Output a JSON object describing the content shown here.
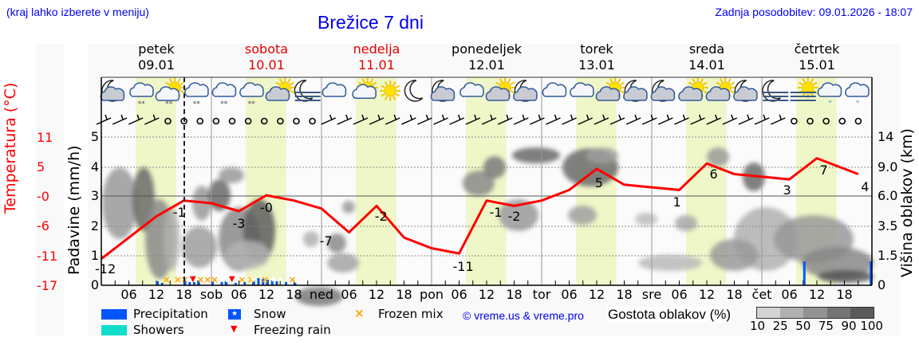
{
  "header": {
    "hint": "(kraj lahko izberete v meniju)",
    "title": "Brežice 7 dni",
    "updated": "Zadnja posodobitev: 09.01.2026 - 18:07"
  },
  "days": [
    {
      "name": "petek",
      "date": "09.01",
      "weekend": false
    },
    {
      "name": "sobota",
      "date": "10.01",
      "weekend": true
    },
    {
      "name": "nedelja",
      "date": "11.01",
      "weekend": true
    },
    {
      "name": "ponedeljek",
      "date": "12.01",
      "weekend": false
    },
    {
      "name": "torek",
      "date": "13.01",
      "weekend": false
    },
    {
      "name": "sreda",
      "date": "14.01",
      "weekend": false
    },
    {
      "name": "četrtek",
      "date": "15.01",
      "weekend": false
    }
  ],
  "axes": {
    "left_temp_title": "Temperatura (°C)",
    "left_temp_ticks": [
      "11",
      "5",
      "-0",
      "-6",
      "-11",
      "-17"
    ],
    "left_precip_title": "Padavine (mm/h)",
    "left_precip_ticks": [
      "5",
      "4",
      "3",
      "2",
      "1",
      "0"
    ],
    "right_title": "Višina oblakov (km)",
    "right_ticks": [
      "14",
      "9.0",
      "6.0",
      "3.5",
      "1.5",
      "0"
    ],
    "x_labels": [
      "06",
      "12",
      "18",
      "sob",
      "06",
      "12",
      "18",
      "ned",
      "06",
      "12",
      "18",
      "pon",
      "06",
      "12",
      "18",
      "tor",
      "06",
      "12",
      "18",
      "sre",
      "06",
      "12",
      "18",
      "čet",
      "06",
      "12",
      "18"
    ]
  },
  "legend": {
    "precipitation": "Precipitation",
    "showers": "Showers",
    "snow": "Snow",
    "freezing_rain": "Freezing rain",
    "frozen_mix": "Frozen mix",
    "copyright": "© vreme.us & vreme.pro",
    "cloud_density_title": "Gostota oblakov (%)",
    "cloud_density_ticks": "10  25  50  75  90 100",
    "colors": {
      "precipitation": "#0055ff",
      "showers": "#11ddcc",
      "snow": "#0055ff",
      "freezing_rain": "#ff0000",
      "frozen_mix": "#ffa500",
      "temperature": "#ff0000",
      "daylight": "#eff7c8",
      "cloud_scale": [
        "#d4d4d4",
        "#b0b0b0",
        "#929292",
        "#747474",
        "#5a5a5a"
      ]
    }
  },
  "icons": [
    "moon-cloud",
    "cloud-snow",
    "sun-cloud-snow",
    "cloud-snow",
    "cloud-snow",
    "cloud-snow",
    "sun-cloud",
    "moon-fog",
    "cloud",
    "sun-small-cloud",
    "sun",
    "moon",
    "moon-cloud",
    "cloud",
    "sun-cloud",
    "moon-cloud",
    "cloud",
    "cloud",
    "sun-cloud",
    "moon-cloud",
    "moon-cloud",
    "sun-cloud",
    "sun-cloud",
    "moon-cloud",
    "moon-fog",
    "sun-fog",
    "cloud-rain",
    "cloud-rain"
  ],
  "chart_data": {
    "type": "line",
    "title": "Brežice 7 dni",
    "xlabel": "",
    "ylabel": "Temperatura (°C) / Padavine (mm/h)",
    "y2label": "Višina oblakov (km)",
    "temp_ylim": [
      -17,
      11
    ],
    "precip_ylim": [
      0,
      5
    ],
    "cloud_height_ticks_km": [
      0,
      1.5,
      3.5,
      6.0,
      9.0,
      14
    ],
    "grid": true,
    "now_marker": "09.01 18:00",
    "series": [
      {
        "name": "Temperatura (°C)",
        "x_hours": [
          0,
          6,
          12,
          18,
          24,
          30,
          36,
          42,
          48,
          54,
          60,
          66,
          72,
          78,
          84,
          90,
          96,
          102,
          108,
          114,
          120,
          126,
          132,
          138,
          144,
          150,
          156,
          162,
          165
        ],
        "values": [
          -12,
          -8,
          -4,
          -1,
          -1.5,
          -3,
          0,
          -1,
          -2.5,
          -7,
          -2,
          -8,
          -10,
          -11,
          -1,
          -2,
          -1,
          1,
          5,
          2,
          1.5,
          1,
          6,
          4,
          3.5,
          3,
          7,
          5,
          4
        ]
      }
    ],
    "annotations": [
      {
        "label": "-12",
        "day": "petek",
        "hour": 0
      },
      {
        "label": "-1",
        "day": "petek",
        "hour": 17
      },
      {
        "label": "-3",
        "day": "sobota",
        "hour": 6
      },
      {
        "label": "-0",
        "day": "sobota",
        "hour": 12
      },
      {
        "label": "-7",
        "day": "nedelja",
        "hour": 1
      },
      {
        "label": "-2",
        "day": "nedelja",
        "hour": 13
      },
      {
        "label": "-11",
        "day": "ponedeljek",
        "hour": 6
      },
      {
        "label": "-1",
        "day": "ponedeljek",
        "hour": 14
      },
      {
        "label": "-2",
        "day": "ponedeljek",
        "hour": 18
      },
      {
        "label": "5",
        "day": "torek",
        "hour": 13
      },
      {
        "label": "1",
        "day": "sreda",
        "hour": 6
      },
      {
        "label": "6",
        "day": "sreda",
        "hour": 14
      },
      {
        "label": "3",
        "day": "četrtek",
        "hour": 6
      },
      {
        "label": "7",
        "day": "četrtek",
        "hour": 14
      },
      {
        "label": "4",
        "day": "četrtek",
        "hour": 23
      }
    ],
    "legend": [
      "Precipitation",
      "Showers",
      "Snow",
      "Freezing rain",
      "Frozen mix",
      "Gostota oblakov (%)"
    ],
    "cloud_density_levels": [
      10,
      25,
      50,
      75,
      90,
      100
    ]
  }
}
